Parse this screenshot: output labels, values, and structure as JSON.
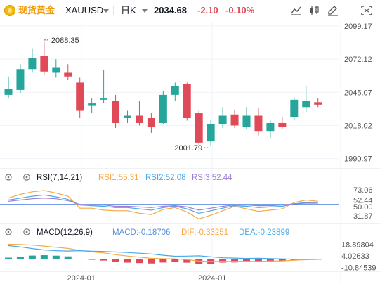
{
  "header": {
    "symbol_name": "现货黄金",
    "symbol_code": "XAUUSD",
    "interval": "日K",
    "price": "2034.68",
    "change": "-2.10",
    "change_pct": "-0.10%",
    "tools": [
      "chart-type-icon",
      "indicators-icon",
      "drawing-icon",
      "fullscreen-icon"
    ]
  },
  "colors": {
    "up": "#26a69a",
    "down": "#e04a58",
    "rsi1": "#f7a845",
    "rsi2": "#4aa9e8",
    "rsi3": "#9c7fd6",
    "macd": "#5b8fd9",
    "dif": "#f7a845",
    "dea": "#4aa9e8"
  },
  "chart_data": [
    {
      "type": "candlestick",
      "title": "",
      "y_axis_labels": [
        "2099.17",
        "2072.12",
        "2045.07",
        "2018.02",
        "1990.97"
      ],
      "ylim": [
        1985,
        2102
      ],
      "x_tick_labels": [
        "2024-01",
        "2024-01"
      ],
      "annotations": [
        {
          "text": "2088.35",
          "type": "high"
        },
        {
          "text": "2001.79",
          "type": "low"
        }
      ],
      "current_price": "2034.68",
      "candles": [
        {
          "o": 2043,
          "h": 2058,
          "l": 2040,
          "c": 2048
        },
        {
          "o": 2047,
          "h": 2068,
          "l": 2044,
          "c": 2064
        },
        {
          "o": 2064,
          "h": 2081,
          "l": 2061,
          "c": 2073
        },
        {
          "o": 2075,
          "h": 2086,
          "l": 2059,
          "c": 2062
        },
        {
          "o": 2061,
          "h": 2072,
          "l": 2057,
          "c": 2065
        },
        {
          "o": 2061,
          "h": 2068,
          "l": 2055,
          "c": 2058
        },
        {
          "o": 2053,
          "h": 2057,
          "l": 2024,
          "c": 2030
        },
        {
          "o": 2034,
          "h": 2040,
          "l": 2028,
          "c": 2036
        },
        {
          "o": 2039,
          "h": 2063,
          "l": 2036,
          "c": 2040
        },
        {
          "o": 2038,
          "h": 2043,
          "l": 2016,
          "c": 2020
        },
        {
          "o": 2024,
          "h": 2030,
          "l": 2020,
          "c": 2026
        },
        {
          "o": 2026,
          "h": 2038,
          "l": 2018,
          "c": 2020
        },
        {
          "o": 2024,
          "h": 2028,
          "l": 2012,
          "c": 2017
        },
        {
          "o": 2020,
          "h": 2046,
          "l": 2019,
          "c": 2043
        },
        {
          "o": 2043,
          "h": 2053,
          "l": 2038,
          "c": 2050
        },
        {
          "o": 2052,
          "h": 2053,
          "l": 2022,
          "c": 2024
        },
        {
          "o": 2028,
          "h": 2030,
          "l": 2002,
          "c": 2004
        },
        {
          "o": 2005,
          "h": 2023,
          "l": 2001,
          "c": 2019
        },
        {
          "o": 2019,
          "h": 2033,
          "l": 2016,
          "c": 2026
        },
        {
          "o": 2027,
          "h": 2031,
          "l": 2016,
          "c": 2018
        },
        {
          "o": 2017,
          "h": 2033,
          "l": 2015,
          "c": 2026
        },
        {
          "o": 2026,
          "h": 2032,
          "l": 2010,
          "c": 2013
        },
        {
          "o": 2013,
          "h": 2022,
          "l": 2008,
          "c": 2020
        },
        {
          "o": 2020,
          "h": 2025,
          "l": 2015,
          "c": 2017
        },
        {
          "o": 2025,
          "h": 2041,
          "l": 2022,
          "c": 2039
        },
        {
          "o": 2033,
          "h": 2050,
          "l": 2029,
          "c": 2038
        },
        {
          "o": 2037,
          "h": 2040,
          "l": 2033,
          "c": 2035
        }
      ]
    },
    {
      "type": "line",
      "title": "RSI(7,14,21)",
      "y_axis_labels": [
        "73.06",
        "52.44",
        "50.00",
        "31.87"
      ],
      "ylim": [
        22,
        82
      ],
      "series": [
        {
          "name": "RSI1:55.31",
          "values": [
            60,
            66,
            70,
            72,
            68,
            63,
            44,
            44,
            41,
            40,
            40,
            36,
            34,
            42,
            45,
            38,
            27,
            33,
            40,
            47,
            43,
            39,
            41,
            43,
            53,
            57,
            55
          ]
        },
        {
          "name": "RSI2:52.08",
          "values": [
            57,
            60,
            63,
            65,
            62,
            58,
            49,
            48,
            47,
            45,
            45,
            43,
            41,
            45,
            47,
            43,
            36,
            40,
            44,
            48,
            47,
            45,
            46,
            47,
            51,
            53,
            52
          ]
        },
        {
          "name": "RSI3:52.44",
          "values": [
            55,
            57,
            59,
            60,
            59,
            56,
            50,
            49,
            49,
            47,
            47,
            46,
            45,
            47,
            48,
            46,
            41,
            44,
            47,
            49,
            49,
            48,
            48,
            49,
            51,
            52,
            52
          ]
        }
      ]
    },
    {
      "type": "bar",
      "title": "MACD(12,26,9)",
      "y_axis_labels": [
        "18.89804",
        "4.02633",
        "-10.84539"
      ],
      "ylim": [
        -13,
        22
      ],
      "series": [
        {
          "name": "MACD:-0.18706",
          "values": [
            1.8,
            3.0,
            4.4,
            4.9,
            4.3,
            3.4,
            0.3,
            -0.9,
            -1.9,
            -3.4,
            -4.5,
            -5.1,
            -5.6,
            -4.4,
            -3.3,
            -4.6,
            -6.6,
            -5.9,
            -4.5,
            -4.3,
            -3.6,
            -4.0,
            -3.2,
            -2.6,
            -1.3,
            -0.6,
            -0.19
          ]
        },
        {
          "name": "DIF:-0.33251",
          "values": [
            18.9,
            18.5,
            17.8,
            16.5,
            15.0,
            13.6,
            11.0,
            9.2,
            7.8,
            5.6,
            3.9,
            2.4,
            0.9,
            0.5,
            0.3,
            -0.8,
            -2.5,
            -3.0,
            -2.9,
            -3.0,
            -2.8,
            -3.0,
            -2.6,
            -2.3,
            -1.4,
            -0.8,
            -0.33
          ]
        },
        {
          "name": "DEA:-0.23899",
          "values": [
            17.1,
            15.5,
            13.4,
            11.6,
            10.7,
            10.2,
            10.7,
            10.1,
            9.7,
            9.0,
            8.4,
            7.5,
            6.5,
            4.9,
            3.6,
            3.8,
            4.1,
            2.9,
            1.6,
            1.3,
            0.8,
            1.0,
            0.6,
            0.3,
            -0.1,
            -0.2,
            -0.24
          ]
        }
      ]
    }
  ]
}
